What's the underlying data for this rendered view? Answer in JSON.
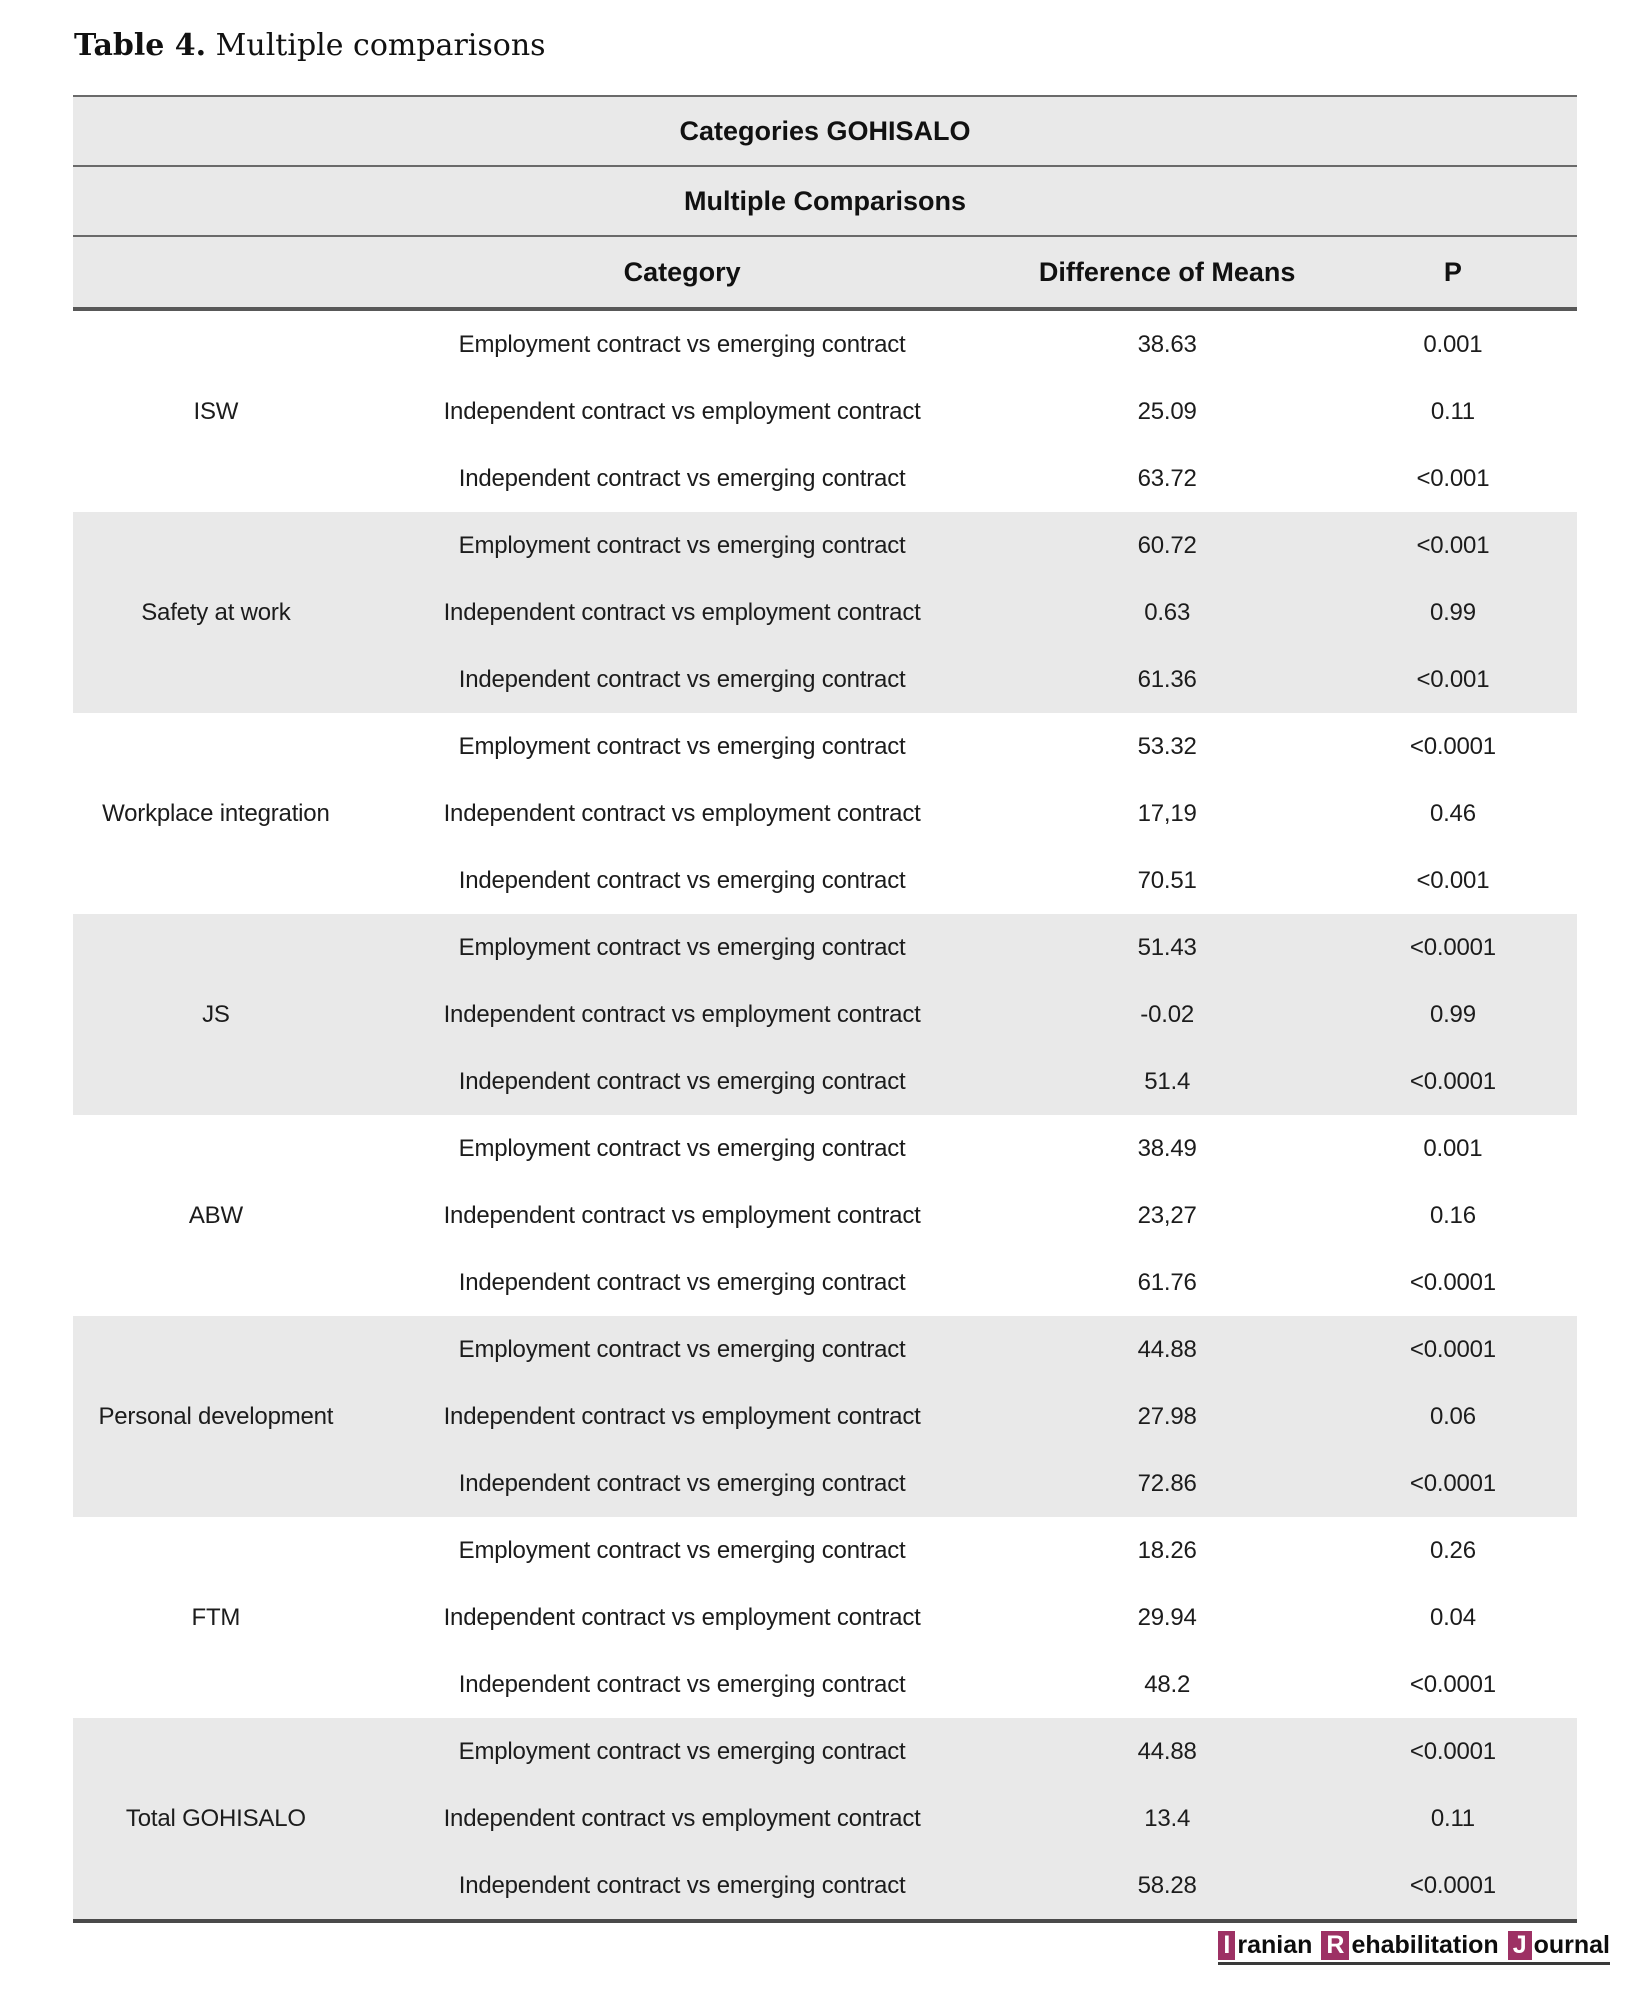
{
  "page": {
    "title_label": "Table 4.",
    "title_text": "Multiple comparisons"
  },
  "table": {
    "header1": "Categories GOHISALO",
    "header2": "Multiple Comparisons",
    "columns": {
      "group": "",
      "category": "Category",
      "diff": "Difference of Means",
      "p": "P"
    },
    "groups": [
      {
        "name": "ISW",
        "rows": [
          {
            "category": "Employment contract vs emerging contract",
            "diff": "38.63",
            "p": "0.001"
          },
          {
            "category": "Independent contract vs employment contract",
            "diff": "25.09",
            "p": "0.11"
          },
          {
            "category": "Independent contract vs emerging contract",
            "diff": "63.72",
            "p": "<0.001"
          }
        ]
      },
      {
        "name": "Safety at work",
        "rows": [
          {
            "category": "Employment contract vs emerging contract",
            "diff": "60.72",
            "p": "<0.001"
          },
          {
            "category": "Independent contract vs employment contract",
            "diff": "0.63",
            "p": "0.99"
          },
          {
            "category": "Independent contract vs emerging contract",
            "diff": "61.36",
            "p": "<0.001"
          }
        ]
      },
      {
        "name": "Workplace integration",
        "rows": [
          {
            "category": "Employment contract vs emerging contract",
            "diff": "53.32",
            "p": "<0.0001"
          },
          {
            "category": "Independent contract vs employment contract",
            "diff": "17,19",
            "p": "0.46"
          },
          {
            "category": "Independent contract vs emerging contract",
            "diff": "70.51",
            "p": "<0.001"
          }
        ]
      },
      {
        "name": "JS",
        "rows": [
          {
            "category": "Employment contract vs emerging contract",
            "diff": "51.43",
            "p": "<0.0001"
          },
          {
            "category": "Independent contract vs employment contract",
            "diff": "-0.02",
            "p": "0.99"
          },
          {
            "category": "Independent contract vs emerging contract",
            "diff": "51.4",
            "p": "<0.0001"
          }
        ]
      },
      {
        "name": "ABW",
        "rows": [
          {
            "category": "Employment contract vs emerging contract",
            "diff": "38.49",
            "p": "0.001"
          },
          {
            "category": "Independent contract vs employment contract",
            "diff": "23,27",
            "p": "0.16"
          },
          {
            "category": "Independent contract vs emerging contract",
            "diff": "61.76",
            "p": "<0.0001"
          }
        ]
      },
      {
        "name": "Personal development",
        "rows": [
          {
            "category": "Employment contract vs emerging contract",
            "diff": "44.88",
            "p": "<0.0001"
          },
          {
            "category": "Independent contract vs employment contract",
            "diff": "27.98",
            "p": "0.06"
          },
          {
            "category": "Independent contract vs emerging contract",
            "diff": "72.86",
            "p": "<0.0001"
          }
        ]
      },
      {
        "name": "FTM",
        "rows": [
          {
            "category": "Employment contract vs emerging contract",
            "diff": "18.26",
            "p": "0.26"
          },
          {
            "category": "Independent contract vs employment contract",
            "diff": "29.94",
            "p": "0.04"
          },
          {
            "category": "Independent contract vs emerging contract",
            "diff": "48.2",
            "p": "<0.0001"
          }
        ]
      },
      {
        "name": "Total GOHISALO",
        "rows": [
          {
            "category": "Employment contract vs emerging contract",
            "diff": "44.88",
            "p": "<0.0001"
          },
          {
            "category": "Independent contract vs employment contract",
            "diff": "13.4",
            "p": "0.11"
          },
          {
            "category": "Independent contract vs emerging contract",
            "diff": "58.28",
            "p": "<0.0001"
          }
        ]
      }
    ]
  },
  "footer": {
    "logo_words": [
      {
        "initial": "I",
        "rest": "ranian"
      },
      {
        "initial": "R",
        "rest": "ehabilitation"
      },
      {
        "initial": "J",
        "rest": "ournal"
      }
    ],
    "logo_color": "#9d3164"
  },
  "colors": {
    "header_bg": "#e9e9e9",
    "shaded_row_bg": "#e9e9e9",
    "rule_color": "#6a6a6a"
  }
}
